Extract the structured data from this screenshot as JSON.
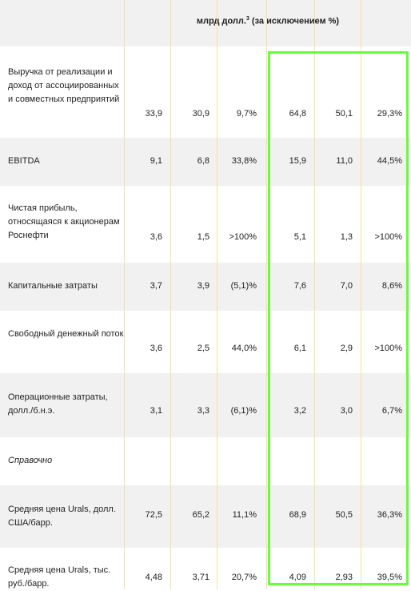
{
  "header": {
    "unit_prefix": "млрд долл.",
    "unit_sup": "3",
    "unit_suffix": " (за исключением   %)"
  },
  "rows": [
    {
      "label": "Выручка от реализации и доход от ассоциированных и совместных предприятий",
      "values": [
        "33,9",
        "30,9",
        "9,7%",
        "64,8",
        "50,1",
        "29,3%"
      ]
    },
    {
      "label": "EBITDA",
      "values": [
        "9,1",
        "6,8",
        "33,8%",
        "15,9",
        "11,0",
        "44,5%"
      ]
    },
    {
      "label": "Чистая прибыль, относящаяся к акционерам Роснефти",
      "values": [
        "3,6",
        "1,5",
        ">100%",
        "5,1",
        "1,3",
        ">100%"
      ]
    },
    {
      "label": "Капитальные затраты",
      "values": [
        "3,7",
        "3,9",
        "(5,1)%",
        "7,6",
        "7,0",
        "8,6%"
      ]
    },
    {
      "label": "Свободный денежный поток",
      "values": [
        "3,6",
        "2,5",
        "44,0%",
        "6,1",
        "2,9",
        ">100%"
      ]
    },
    {
      "label": "Операционные затраты, долл./б.н.э.",
      "values": [
        "3,1",
        "3,3",
        "(6,1)%",
        "3,2",
        "3,0",
        "6,7%"
      ]
    },
    {
      "label": "Справочно",
      "values": []
    },
    {
      "label": "Средняя цена Urals, долл. США/барр.",
      "values": [
        "72,5",
        "65,2",
        "11,1%",
        "68,9",
        "50,5",
        "36,3%"
      ]
    },
    {
      "label": "Средняя цена Urals, тыс. руб./барр.",
      "values": [
        "4,48",
        "3,71",
        "20,7%",
        "4,09",
        "2,93",
        "39,5%"
      ]
    }
  ]
}
